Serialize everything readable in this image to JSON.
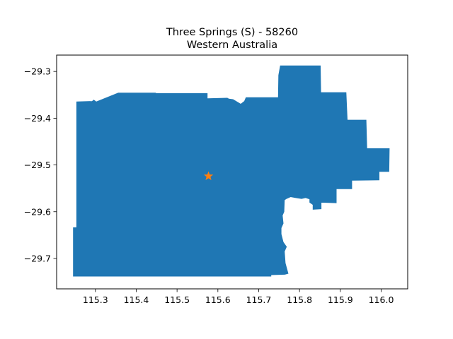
{
  "chart_data": {
    "type": "map",
    "title_line1": "Three Springs (S) - 58260",
    "title_line2": "Western Australia",
    "region_fill": "#1f77b4",
    "marker_color": "#ff7f0e",
    "marker_symbol": "star-icon",
    "xlim": [
      115.205,
      116.065
    ],
    "ylim": [
      -29.765,
      -29.265
    ],
    "xticks": [
      {
        "value": 115.3,
        "label": "115.3"
      },
      {
        "value": 115.4,
        "label": "115.4"
      },
      {
        "value": 115.5,
        "label": "115.5"
      },
      {
        "value": 115.6,
        "label": "115.6"
      },
      {
        "value": 115.7,
        "label": "115.7"
      },
      {
        "value": 115.8,
        "label": "115.8"
      },
      {
        "value": 115.9,
        "label": "115.9"
      },
      {
        "value": 116.0,
        "label": "116.0"
      }
    ],
    "yticks": [
      {
        "value": -29.3,
        "label": "−29.3"
      },
      {
        "value": -29.4,
        "label": "−29.4"
      },
      {
        "value": -29.5,
        "label": "−29.5"
      },
      {
        "value": -29.6,
        "label": "−29.6"
      },
      {
        "value": -29.7,
        "label": "−29.7"
      }
    ],
    "marker": {
      "lon": 115.577,
      "lat": -29.524
    },
    "boundary": [
      [
        115.254,
        -29.365
      ],
      [
        115.292,
        -29.364
      ],
      [
        115.296,
        -29.361
      ],
      [
        115.302,
        -29.365
      ],
      [
        115.356,
        -29.346
      ],
      [
        115.447,
        -29.346
      ],
      [
        115.449,
        -29.347
      ],
      [
        115.574,
        -29.347
      ],
      [
        115.574,
        -29.358
      ],
      [
        115.623,
        -29.357
      ],
      [
        115.627,
        -29.359
      ],
      [
        115.637,
        -29.36
      ],
      [
        115.656,
        -29.37
      ],
      [
        115.665,
        -29.364
      ],
      [
        115.669,
        -29.356
      ],
      [
        115.748,
        -29.356
      ],
      [
        115.749,
        -29.308
      ],
      [
        115.753,
        -29.288
      ],
      [
        115.851,
        -29.288
      ],
      [
        115.852,
        -29.345
      ],
      [
        115.914,
        -29.345
      ],
      [
        115.917,
        -29.404
      ],
      [
        115.963,
        -29.404
      ],
      [
        115.965,
        -29.465
      ],
      [
        116.02,
        -29.465
      ],
      [
        116.019,
        -29.514
      ],
      [
        115.995,
        -29.514
      ],
      [
        115.995,
        -29.532
      ],
      [
        115.928,
        -29.533
      ],
      [
        115.928,
        -29.551
      ],
      [
        115.89,
        -29.551
      ],
      [
        115.89,
        -29.581
      ],
      [
        115.853,
        -29.58
      ],
      [
        115.853,
        -29.594
      ],
      [
        115.833,
        -29.595
      ],
      [
        115.833,
        -29.585
      ],
      [
        115.825,
        -29.58
      ],
      [
        115.825,
        -29.573
      ],
      [
        115.815,
        -29.57
      ],
      [
        115.805,
        -29.572
      ],
      [
        115.79,
        -29.57
      ],
      [
        115.778,
        -29.568
      ],
      [
        115.768,
        -29.572
      ],
      [
        115.763,
        -29.575
      ],
      [
        115.762,
        -29.6
      ],
      [
        115.758,
        -29.608
      ],
      [
        115.76,
        -29.625
      ],
      [
        115.755,
        -29.635
      ],
      [
        115.755,
        -29.648
      ],
      [
        115.76,
        -29.665
      ],
      [
        115.768,
        -29.675
      ],
      [
        115.763,
        -29.685
      ],
      [
        115.765,
        -29.71
      ],
      [
        115.772,
        -29.732
      ],
      [
        115.764,
        -29.734
      ],
      [
        115.73,
        -29.735
      ],
      [
        115.73,
        -29.738
      ],
      [
        115.246,
        -29.738
      ],
      [
        115.246,
        -29.634
      ],
      [
        115.254,
        -29.634
      ]
    ]
  }
}
